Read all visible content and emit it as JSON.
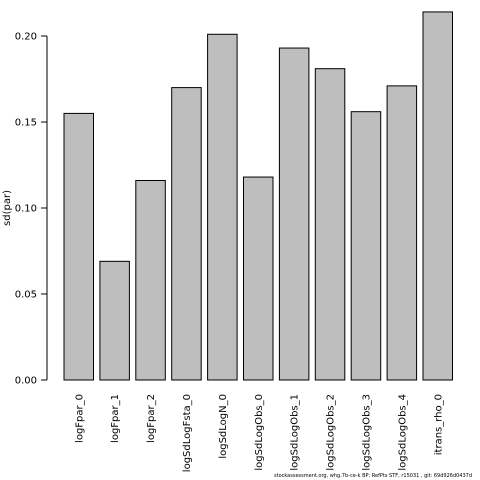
{
  "chart_data": {
    "type": "bar",
    "categories": [
      "logFpar_0",
      "logFpar_1",
      "logFpar_2",
      "logSdLogFsta_0",
      "logSdLogN_0",
      "logSdLogObs_0",
      "logSdLogObs_1",
      "logSdLogObs_2",
      "logSdLogObs_3",
      "logSdLogObs_4",
      "itrans_rho_0"
    ],
    "values": [
      0.155,
      0.069,
      0.116,
      0.17,
      0.201,
      0.118,
      0.193,
      0.181,
      0.156,
      0.171,
      0.214
    ],
    "title": "",
    "xlabel": "",
    "ylabel": "sd(par)",
    "ylim": [
      0,
      0.2
    ],
    "yticks": [
      "0.00",
      "0.05",
      "0.10",
      "0.15",
      "0.20"
    ],
    "grid": false,
    "legend": "none",
    "bar_color": "#bebebe",
    "edge_color": "#000000"
  },
  "footer_text": "stockassessment.org, whg.7b-ce-k  BP: RefPts  STF, r15031 , git: 69d926d0437d"
}
